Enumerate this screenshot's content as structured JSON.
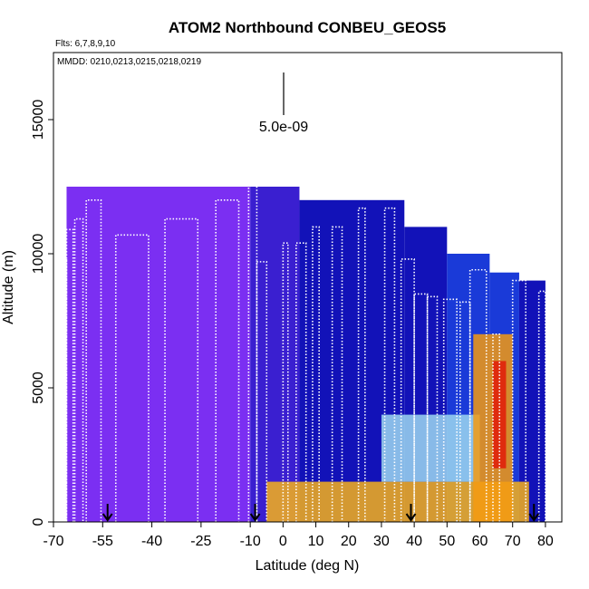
{
  "chart_data": {
    "type": "heatmap",
    "title": "ATOM2 Northbound CONBEU_GEOS5",
    "flights_label": "Flts: 6,7,8,9,10",
    "dates_label": "MMDD: 0210,0213,0215,0218,0219",
    "xlabel": "Latitude (deg N)",
    "ylabel": "Altitude (m)",
    "xlim": [
      -70,
      85
    ],
    "ylim": [
      0,
      17500
    ],
    "x_ticks": [
      -70,
      -55,
      -40,
      -25,
      -10,
      0,
      10,
      20,
      30,
      40,
      50,
      60,
      70,
      80
    ],
    "x_tick_labels": [
      "-70",
      "-55",
      "-40",
      "-25",
      "-10",
      "0",
      "10",
      "20",
      "30",
      "40",
      "50",
      "60",
      "70",
      "80"
    ],
    "y_ticks": [
      0,
      5000,
      10000,
      15000
    ],
    "y_tick_labels": [
      "0",
      "5000",
      "10000",
      "15000"
    ],
    "scale_label": "5.0e-09",
    "flight_boundary_arrows_lat": [
      -53.5,
      -8.5,
      39,
      76.5
    ],
    "model_curtain": {
      "description_columns": "model field sampled along flight track, colored by value",
      "columns": [
        {
          "lat_from": -66,
          "lat_to": -10,
          "top": 12500,
          "level": 0
        },
        {
          "lat_from": -10,
          "lat_to": 5,
          "top": 12500,
          "level": 1
        },
        {
          "lat_from": 5,
          "lat_to": 37,
          "top": 12000,
          "level": 2
        },
        {
          "lat_from": 37,
          "lat_to": 50,
          "top": 11000,
          "level": 2
        },
        {
          "lat_from": 50,
          "lat_to": 63,
          "top": 10000,
          "level": 3
        },
        {
          "lat_from": 63,
          "lat_to": 72,
          "top": 9300,
          "level": 3
        },
        {
          "lat_from": 72,
          "lat_to": 80,
          "top": 9000,
          "level": 2
        }
      ],
      "plumes": [
        {
          "lat_from": -5,
          "lat_to": 75,
          "alt_from": 0,
          "alt_to": 1500,
          "level": 5
        },
        {
          "lat_from": 30,
          "lat_to": 60,
          "alt_from": 1500,
          "alt_to": 4000,
          "level": 4
        },
        {
          "lat_from": 58,
          "lat_to": 70,
          "alt_from": 0,
          "alt_to": 7000,
          "level": 6
        },
        {
          "lat_from": 64,
          "lat_to": 68,
          "alt_from": 2000,
          "alt_to": 6000,
          "level": 7
        }
      ]
    },
    "flight_track_profiles": [
      {
        "lat_start": -68,
        "lat_end": -66,
        "alt_max": 9800
      },
      {
        "lat_start": -66,
        "lat_end": -64,
        "alt_max": 10900
      },
      {
        "lat_start": -63.5,
        "lat_end": -61,
        "alt_max": 11300
      },
      {
        "lat_start": -60,
        "lat_end": -55.5,
        "alt_max": 12000
      },
      {
        "lat_start": -51,
        "lat_end": -41,
        "alt_max": 10700
      },
      {
        "lat_start": -36,
        "lat_end": -26,
        "alt_max": 11300
      },
      {
        "lat_start": -20.5,
        "lat_end": -13.5,
        "alt_max": 12000
      },
      {
        "lat_start": -10.5,
        "lat_end": -8,
        "alt_max": 12900
      },
      {
        "lat_start": -8,
        "lat_end": -5,
        "alt_max": 9700
      },
      {
        "lat_start": 0,
        "lat_end": 1.5,
        "alt_max": 10400
      },
      {
        "lat_start": 4,
        "lat_end": 7,
        "alt_max": 10400
      },
      {
        "lat_start": 9,
        "lat_end": 11,
        "alt_max": 11000
      },
      {
        "lat_start": 15,
        "lat_end": 18,
        "alt_max": 11000
      },
      {
        "lat_start": 23,
        "lat_end": 25,
        "alt_max": 11700
      },
      {
        "lat_start": 31,
        "lat_end": 34,
        "alt_max": 11700
      },
      {
        "lat_start": 36,
        "lat_end": 40,
        "alt_max": 9800
      },
      {
        "lat_start": 40,
        "lat_end": 44,
        "alt_max": 8500
      },
      {
        "lat_start": 44,
        "lat_end": 47,
        "alt_max": 8400
      },
      {
        "lat_start": 49,
        "lat_end": 53,
        "alt_max": 8300
      },
      {
        "lat_start": 54,
        "lat_end": 57,
        "alt_max": 8200
      },
      {
        "lat_start": 57,
        "lat_end": 62,
        "alt_max": 9400
      },
      {
        "lat_start": 64,
        "lat_end": 66,
        "alt_max": 7000
      },
      {
        "lat_start": 70,
        "lat_end": 74,
        "alt_max": 9000
      },
      {
        "lat_start": 78,
        "lat_end": 80,
        "alt_max": 8600
      }
    ],
    "colors": {
      "level_0": "#7b2ff2",
      "level_1": "#3a1fd0",
      "level_2": "#1212b8",
      "level_3": "#1a3ad8",
      "level_4": "#9ed8f0",
      "level_5": "#f7b21a",
      "level_6": "#f59a10",
      "level_7": "#e01a08",
      "track": "#ffffff",
      "arrow": "#000000"
    }
  }
}
